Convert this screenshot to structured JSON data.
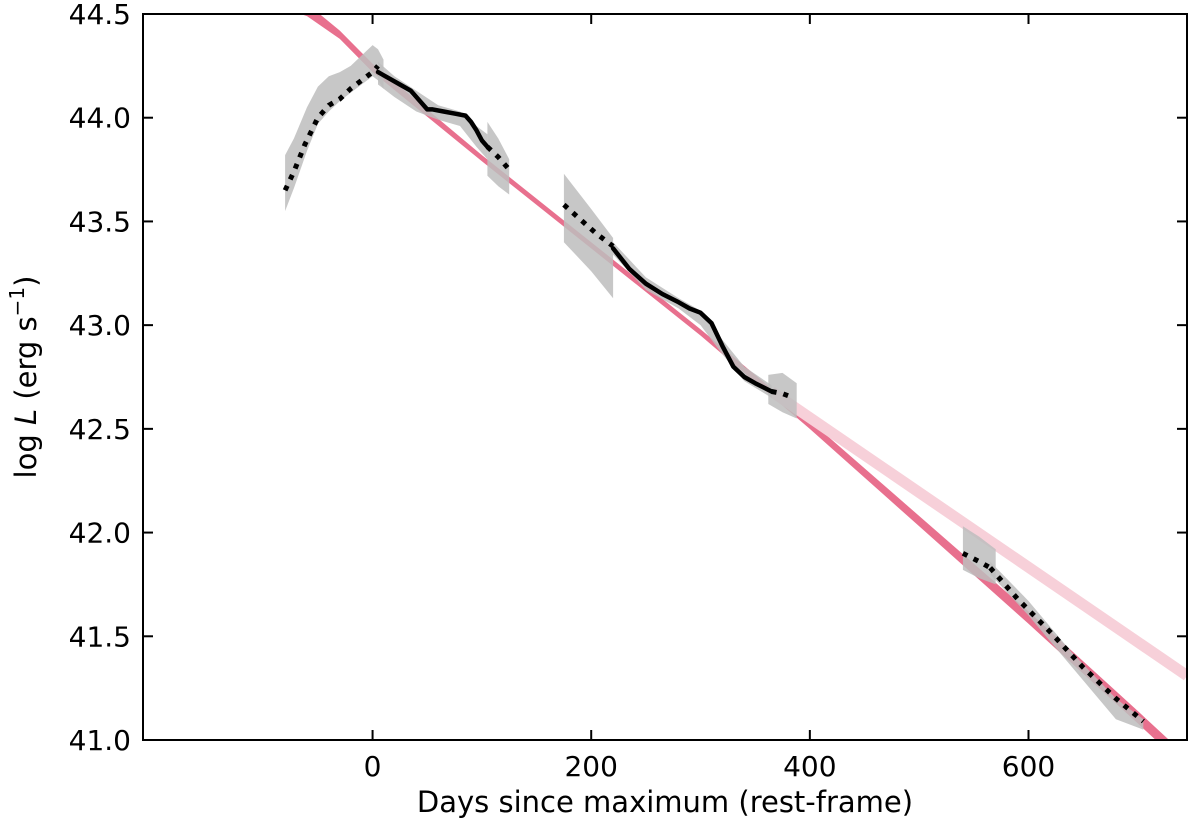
{
  "chart_data": {
    "type": "line",
    "xlabel": "Days since maximum (rest-frame)",
    "ylabel": {
      "prefix": "log ",
      "var": "L",
      "unit": " (erg s",
      "exp": "−1",
      "close": ")"
    },
    "xlim": [
      -210,
      745
    ],
    "ylim": [
      41.0,
      44.5
    ],
    "xticks": [
      0,
      200,
      400,
      600
    ],
    "yticks": [
      41.0,
      41.5,
      42.0,
      42.5,
      43.0,
      43.5,
      44.0,
      44.5
    ],
    "xtick_labels": [
      "0",
      "200",
      "400",
      "600"
    ],
    "ytick_labels": [
      "41.0",
      "41.5",
      "42.0",
      "42.5",
      "43.0",
      "43.5",
      "44.0",
      "44.5"
    ],
    "grid": false,
    "legend": "none",
    "colors": {
      "fit": "#e8708e",
      "fit_faded": "#f7d0d9",
      "observed": "#000000",
      "uncertainty": "#bdbdbd"
    },
    "series": [
      {
        "style": "fit-band",
        "x": [
          -210,
          -100,
          -60,
          -30,
          0,
          100,
          200,
          300,
          400,
          500,
          600,
          700,
          745
        ],
        "upper": [
          44.72,
          44.64,
          44.55,
          44.42,
          44.26,
          43.82,
          43.4,
          42.98,
          42.54,
          42.08,
          41.62,
          41.14,
          40.92
        ],
        "lower": [
          44.62,
          44.56,
          44.49,
          44.38,
          44.22,
          43.79,
          43.37,
          42.95,
          42.5,
          42.03,
          41.56,
          41.08,
          40.86
        ]
      },
      {
        "style": "fit-faded",
        "x": [
          365,
          745
        ],
        "y": [
          42.68,
          41.31
        ]
      },
      {
        "style": "uncertainty-band",
        "x": [
          -80,
          -72,
          -60,
          -50,
          -40,
          -30,
          -20,
          -10,
          0,
          5,
          10
        ],
        "upper": [
          43.82,
          43.9,
          44.05,
          44.15,
          44.2,
          44.22,
          44.25,
          44.3,
          44.35,
          44.33,
          44.28
        ],
        "lower": [
          43.55,
          43.66,
          43.84,
          43.97,
          44.03,
          44.08,
          44.12,
          44.16,
          44.2,
          44.18,
          44.14
        ]
      },
      {
        "style": "uncertainty-band",
        "x": [
          5,
          20,
          40,
          60,
          80,
          95,
          105
        ],
        "upper": [
          44.27,
          44.2,
          44.13,
          44.06,
          44.03,
          43.96,
          43.92
        ],
        "lower": [
          44.16,
          44.1,
          44.03,
          43.99,
          43.96,
          43.86,
          43.8
        ]
      },
      {
        "style": "uncertainty-band",
        "x": [
          105,
          115,
          125
        ],
        "upper": [
          43.98,
          43.9,
          43.8
        ],
        "lower": [
          43.72,
          43.67,
          43.63
        ]
      },
      {
        "style": "uncertainty-band",
        "x": [
          175,
          200,
          220
        ],
        "upper": [
          43.73,
          43.56,
          43.42
        ],
        "lower": [
          43.4,
          43.26,
          43.13
        ]
      },
      {
        "style": "uncertainty-band",
        "x": [
          220,
          250,
          280,
          300,
          320,
          340,
          365
        ],
        "upper": [
          43.4,
          43.23,
          43.13,
          43.07,
          42.93,
          42.8,
          42.71
        ],
        "lower": [
          43.34,
          43.17,
          43.08,
          43.0,
          42.86,
          42.73,
          42.65
        ]
      },
      {
        "style": "uncertainty-band",
        "x": [
          362,
          375,
          388
        ],
        "upper": [
          42.76,
          42.77,
          42.72
        ],
        "lower": [
          42.62,
          42.58,
          42.55
        ]
      },
      {
        "style": "uncertainty-band",
        "x": [
          540,
          555,
          570
        ],
        "upper": [
          42.03,
          41.98,
          41.92
        ],
        "lower": [
          41.82,
          41.78,
          41.75
        ]
      },
      {
        "style": "uncertainty-band",
        "x": [
          565,
          600,
          640,
          680,
          705
        ],
        "upper": [
          41.86,
          41.67,
          41.42,
          41.2,
          41.1
        ],
        "lower": [
          41.8,
          41.6,
          41.35,
          41.1,
          41.05
        ]
      },
      {
        "style": "dotted",
        "x": [
          -80,
          -72,
          -62,
          -50,
          -40,
          -30,
          -20,
          -10,
          0,
          5
        ],
        "y": [
          43.65,
          43.74,
          43.87,
          44.0,
          44.06,
          44.09,
          44.14,
          44.18,
          44.22,
          44.25
        ]
      },
      {
        "style": "solid",
        "x": [
          5,
          15,
          25,
          35,
          45,
          50,
          55,
          65,
          75,
          85,
          90,
          95,
          100,
          105
        ],
        "y": [
          44.22,
          44.19,
          44.16,
          44.13,
          44.07,
          44.04,
          44.04,
          44.03,
          44.02,
          44.01,
          43.98,
          43.94,
          43.89,
          43.86
        ]
      },
      {
        "style": "dotted",
        "x": [
          105,
          115,
          125
        ],
        "y": [
          43.86,
          43.81,
          43.75
        ]
      },
      {
        "style": "dotted",
        "x": [
          175,
          190,
          205,
          220
        ],
        "y": [
          43.58,
          43.51,
          43.44,
          43.38
        ]
      },
      {
        "style": "solid",
        "x": [
          220,
          235,
          250,
          265,
          280,
          290,
          300,
          310,
          320,
          330,
          340,
          350,
          365
        ],
        "y": [
          43.37,
          43.27,
          43.2,
          43.15,
          43.11,
          43.08,
          43.06,
          43.01,
          42.9,
          42.8,
          42.75,
          42.72,
          42.68
        ]
      },
      {
        "style": "dotted",
        "x": [
          365,
          375,
          385
        ],
        "y": [
          42.68,
          42.67,
          42.65
        ]
      },
      {
        "style": "dotted",
        "x": [
          540,
          555,
          565
        ],
        "y": [
          41.9,
          41.86,
          41.83
        ]
      },
      {
        "style": "dotted",
        "x": [
          565,
          590,
          620,
          650,
          680,
          705
        ],
        "y": [
          41.83,
          41.68,
          41.52,
          41.35,
          41.2,
          41.09
        ]
      }
    ]
  }
}
